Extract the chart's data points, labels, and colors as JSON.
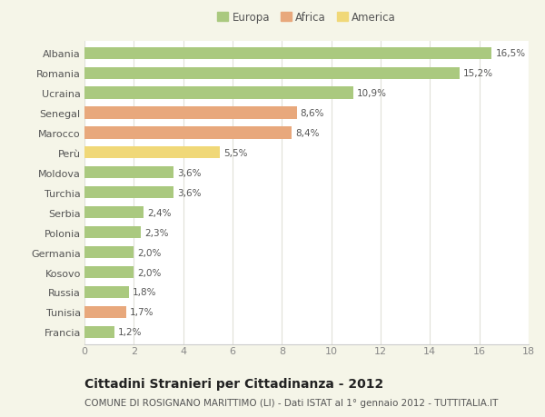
{
  "categories": [
    "Albania",
    "Romania",
    "Ucraina",
    "Senegal",
    "Marocco",
    "Perù",
    "Moldova",
    "Turchia",
    "Serbia",
    "Polonia",
    "Germania",
    "Kosovo",
    "Russia",
    "Tunisia",
    "Francia"
  ],
  "values": [
    16.5,
    15.2,
    10.9,
    8.6,
    8.4,
    5.5,
    3.6,
    3.6,
    2.4,
    2.3,
    2.0,
    2.0,
    1.8,
    1.7,
    1.2
  ],
  "labels": [
    "16,5%",
    "15,2%",
    "10,9%",
    "8,6%",
    "8,4%",
    "5,5%",
    "3,6%",
    "3,6%",
    "2,4%",
    "2,3%",
    "2,0%",
    "2,0%",
    "1,8%",
    "1,7%",
    "1,2%"
  ],
  "continents": [
    "Europa",
    "Europa",
    "Europa",
    "Africa",
    "Africa",
    "America",
    "Europa",
    "Europa",
    "Europa",
    "Europa",
    "Europa",
    "Europa",
    "Europa",
    "Africa",
    "Europa"
  ],
  "colors": {
    "Europa": "#aac97f",
    "Africa": "#e8a87c",
    "America": "#f0d878"
  },
  "legend_colors_order": [
    "Europa",
    "Africa",
    "America"
  ],
  "xlim": [
    0,
    18
  ],
  "xticks": [
    0,
    2,
    4,
    6,
    8,
    10,
    12,
    14,
    16,
    18
  ],
  "title": "Cittadini Stranieri per Cittadinanza - 2012",
  "subtitle": "COMUNE DI ROSIGNANO MARITTIMO (LI) - Dati ISTAT al 1° gennaio 2012 - TUTTITALIA.IT",
  "outer_bg": "#f5f5e8",
  "plot_bg": "#ffffff",
  "grid_color": "#e0e0d8",
  "bar_height": 0.6,
  "label_fontsize": 7.5,
  "ytick_fontsize": 8,
  "xtick_fontsize": 8,
  "title_fontsize": 10,
  "subtitle_fontsize": 7.5,
  "legend_fontsize": 8.5
}
